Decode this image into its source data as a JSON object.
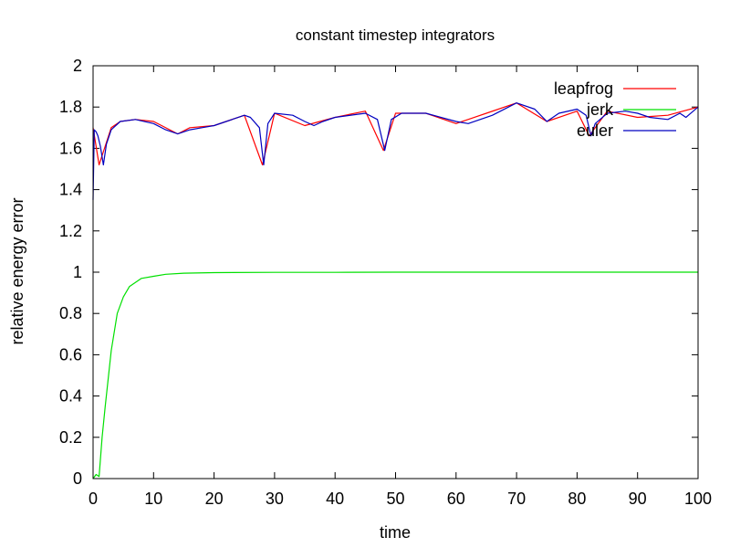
{
  "chart_data": {
    "type": "line",
    "title": "constant timestep integrators",
    "xlabel": "time",
    "ylabel": "relative energy error",
    "xlim": [
      0,
      100
    ],
    "ylim": [
      0,
      2
    ],
    "xticks": [
      0,
      10,
      20,
      30,
      40,
      50,
      60,
      70,
      80,
      90,
      100
    ],
    "xtick_labels": [
      "0",
      "10",
      "20",
      "30",
      "40",
      "50",
      "60",
      "70",
      "80",
      "90",
      "100"
    ],
    "yticks": [
      0,
      0.2,
      0.4,
      0.6,
      0.8,
      1,
      1.2,
      1.4,
      1.6,
      1.8,
      2
    ],
    "ytick_labels": [
      "0",
      "0.2",
      "0.4",
      "0.6",
      "0.8",
      "1",
      "1.2",
      "1.4",
      "1.6",
      "1.8",
      "2"
    ],
    "grid": false,
    "legend_position": "top-right",
    "series": [
      {
        "name": "leapfrog",
        "color": "#ff0000",
        "x": [
          0,
          1,
          3,
          4.5,
          7,
          10,
          14,
          16,
          20,
          25,
          28,
          30,
          35,
          40,
          45,
          48,
          50,
          55,
          60,
          65,
          70,
          75,
          80,
          82,
          85,
          90,
          95,
          100
        ],
        "y": [
          1.7,
          1.52,
          1.7,
          1.73,
          1.74,
          1.73,
          1.67,
          1.7,
          1.71,
          1.76,
          1.52,
          1.77,
          1.71,
          1.75,
          1.78,
          1.59,
          1.77,
          1.77,
          1.72,
          1.77,
          1.82,
          1.73,
          1.78,
          1.66,
          1.78,
          1.75,
          1.76,
          1.8
        ]
      },
      {
        "name": "jerk",
        "color": "#00e000",
        "x": [
          0,
          0.5,
          1,
          1.5,
          2,
          3,
          4,
          5,
          6,
          8,
          10,
          12,
          15,
          20,
          30,
          40,
          50,
          60,
          70,
          80,
          90,
          100
        ],
        "y": [
          0,
          0.02,
          0.01,
          0.2,
          0.35,
          0.62,
          0.8,
          0.88,
          0.93,
          0.97,
          0.98,
          0.99,
          0.995,
          0.998,
          0.999,
          0.999,
          1.0,
          1.0,
          1.0,
          1.0,
          1.0,
          1.0
        ]
      },
      {
        "name": "euler",
        "color": "#0000c0",
        "x": [
          0,
          0.2,
          0.5,
          0.8,
          1.2,
          1.7,
          2.2,
          3,
          4.5,
          7,
          10,
          12,
          14,
          16,
          18,
          20,
          22,
          25,
          26,
          27.5,
          28.2,
          28.9,
          30,
          33,
          35,
          36.5,
          38,
          40,
          45,
          47,
          48.2,
          49.3,
          51,
          55,
          60,
          62,
          66,
          70,
          73,
          75,
          77,
          80,
          81.5,
          82.3,
          83,
          85,
          88,
          90,
          92,
          95,
          97,
          98,
          100
        ],
        "y": [
          1.35,
          1.69,
          1.68,
          1.66,
          1.61,
          1.52,
          1.62,
          1.69,
          1.73,
          1.74,
          1.72,
          1.69,
          1.67,
          1.69,
          1.7,
          1.71,
          1.73,
          1.76,
          1.75,
          1.7,
          1.52,
          1.72,
          1.77,
          1.76,
          1.73,
          1.71,
          1.73,
          1.75,
          1.77,
          1.74,
          1.59,
          1.74,
          1.77,
          1.77,
          1.73,
          1.72,
          1.76,
          1.82,
          1.79,
          1.73,
          1.77,
          1.79,
          1.76,
          1.66,
          1.72,
          1.77,
          1.78,
          1.77,
          1.75,
          1.74,
          1.77,
          1.75,
          1.8
        ]
      }
    ]
  }
}
